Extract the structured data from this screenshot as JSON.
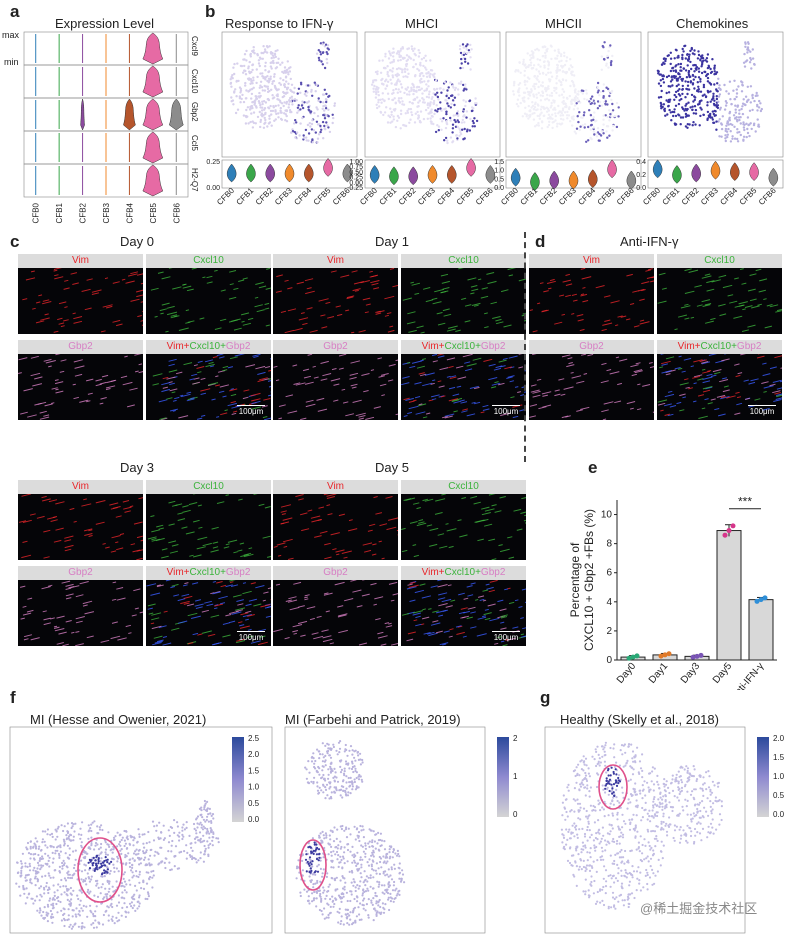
{
  "panels": {
    "a": "a",
    "b": "b",
    "c": "c",
    "d": "d",
    "e": "e",
    "f": "f",
    "g": "g"
  },
  "panel_a": {
    "title": "Expression Level",
    "max_label": "max",
    "min_label": "min",
    "genes": [
      "Cxcl9",
      "Cxcl10",
      "Gbp2",
      "Ccl5",
      "H2-Q7"
    ],
    "clusters": [
      "CFB0",
      "CFB1",
      "CFB2",
      "CFB3",
      "CFB4",
      "CFB5",
      "CFB6"
    ]
  },
  "panel_b": {
    "titles": [
      "Response to IFN-γ",
      "MHCI",
      "MHCII",
      "Chemokines"
    ],
    "clusters": [
      "CFB0",
      "CFB1",
      "CFB2",
      "CFB3",
      "CFB4",
      "CFB5",
      "CFB6"
    ],
    "yticks": [
      [
        "0.25",
        "0.00"
      ],
      [
        "1.00",
        "0.75",
        "0.50",
        "0.25",
        "0.00",
        "-0.25"
      ],
      [
        "1.5",
        "1.0",
        "0.5",
        "0.0"
      ],
      [
        "0.4",
        "0.2",
        "0.0"
      ]
    ]
  },
  "panel_c": {
    "day0": "Day 0",
    "day1": "Day 1",
    "day3": "Day 3",
    "day5": "Day 5",
    "vim": "Vim",
    "cxcl10": "Cxcl10",
    "gbp2": "Gbp2",
    "merge_vim": "Vim",
    "merge_plus": "+",
    "merge_cxcl": "Cxcl10",
    "merge_gbp": "Gbp2",
    "scale": "100μm"
  },
  "panel_d": {
    "title": "Anti-IFN-γ"
  },
  "panel_e": {
    "ylabel_line1": "Percentage of",
    "ylabel_line2": "CXCL10 + Gbp2 +FBs (%)",
    "yticks": [
      "0",
      "2",
      "4",
      "6",
      "8",
      "10"
    ],
    "significance": "***"
  },
  "panel_f": {
    "left_title": "MI (Hesse and Owenier, 2021)",
    "right_title": "MI (Farbehi and  Patrick, 2019)",
    "left_scale": [
      "2.5",
      "2.0",
      "1.5",
      "1.0",
      "0.5",
      "0.0"
    ],
    "right_scale": [
      "2",
      "1",
      "0"
    ]
  },
  "panel_g": {
    "title": "Healthy (Skelly et al., 2018)",
    "scale": [
      "2.0",
      "1.5",
      "1.0",
      "0.5",
      "0.0"
    ]
  },
  "watermark": "@稀土掘金技术社区",
  "colors": {
    "cluster": [
      "#2e7fb8",
      "#3aa64a",
      "#8b4a9e",
      "#f08a2c",
      "#b5552c",
      "#e66aa4",
      "#8c8c8c"
    ],
    "red": "#e8262b",
    "green": "#3cb33c",
    "pink": "#d77fc4",
    "circle": "#e0508a"
  },
  "chart_data": {
    "type": "bar",
    "categories": [
      "Day0",
      "Day1",
      "Day3",
      "Day5",
      "Anti-IFN-γ"
    ],
    "values": [
      0.2,
      0.35,
      0.25,
      8.9,
      4.15
    ],
    "errors": [
      0.1,
      0.1,
      0.08,
      0.4,
      0.15
    ],
    "ylabel": "Percentage of CXCL10 + Gbp2 +FBs (%)",
    "ylim": [
      0,
      11
    ]
  }
}
